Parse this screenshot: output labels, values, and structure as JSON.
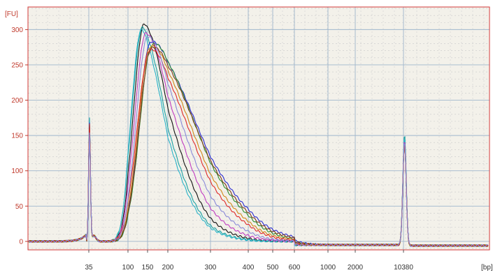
{
  "chart_data": {
    "type": "line",
    "title": "",
    "y_unit_label": "[FU]",
    "x_unit_label": "[bp]",
    "xlabel": "",
    "ylabel": "",
    "x_scale": "electrophoresis (non-linear)",
    "ylim": [
      -12,
      332
    ],
    "y_ticks": [
      0,
      50,
      100,
      150,
      200,
      250,
      300
    ],
    "x_ticks": [
      "35",
      "100",
      "150",
      "200",
      "300",
      "400",
      "500",
      "600",
      "1000",
      "2000",
      "10380"
    ],
    "x_tick_positions": [
      35,
      100,
      150,
      200,
      300,
      400,
      500,
      600,
      1000,
      2000,
      10380
    ],
    "grid": true,
    "legend": "none",
    "background_color": "#f3f1ea",
    "frame_color": "#d33a3a",
    "lower_marker_bp": 35,
    "upper_marker_bp": 10380,
    "series": [
      {
        "color": "#111111",
        "marker_height": 165,
        "peak_bp": 140,
        "peak_fu": 308,
        "sigma_left": 0.22,
        "sigma_right": 0.36,
        "upper_marker_height": 150
      },
      {
        "color": "#1aa3a3",
        "marker_height": 175,
        "peak_bp": 135,
        "peak_fu": 303,
        "sigma_left": 0.22,
        "sigma_right": 0.35,
        "upper_marker_height": 157
      },
      {
        "color": "#28b3c8",
        "marker_height": 170,
        "peak_bp": 132,
        "peak_fu": 300,
        "sigma_left": 0.21,
        "sigma_right": 0.35,
        "upper_marker_height": 152
      },
      {
        "color": "#c03cc0",
        "marker_height": 160,
        "peak_bp": 145,
        "peak_fu": 295,
        "sigma_left": 0.23,
        "sigma_right": 0.38,
        "upper_marker_height": 148
      },
      {
        "color": "#2a2ad0",
        "marker_height": 168,
        "peak_bp": 160,
        "peak_fu": 283,
        "sigma_left": 0.24,
        "sigma_right": 0.48,
        "upper_marker_height": 146
      },
      {
        "color": "#2f8f2f",
        "marker_height": 163,
        "peak_bp": 165,
        "peak_fu": 280,
        "sigma_left": 0.25,
        "sigma_right": 0.44,
        "upper_marker_height": 147
      },
      {
        "color": "#d08a1a",
        "marker_height": 158,
        "peak_bp": 160,
        "peak_fu": 277,
        "sigma_left": 0.25,
        "sigma_right": 0.43,
        "upper_marker_height": 144
      },
      {
        "color": "#7a3a1a",
        "marker_height": 162,
        "peak_bp": 163,
        "peak_fu": 275,
        "sigma_left": 0.25,
        "sigma_right": 0.46,
        "upper_marker_height": 145
      },
      {
        "color": "#e02a2a",
        "marker_height": 167,
        "peak_bp": 158,
        "peak_fu": 272,
        "sigma_left": 0.26,
        "sigma_right": 0.42,
        "upper_marker_height": 145
      },
      {
        "color": "#8a8ad8",
        "marker_height": 155,
        "peak_bp": 150,
        "peak_fu": 290,
        "sigma_left": 0.23,
        "sigma_right": 0.4,
        "upper_marker_height": 146
      }
    ]
  }
}
